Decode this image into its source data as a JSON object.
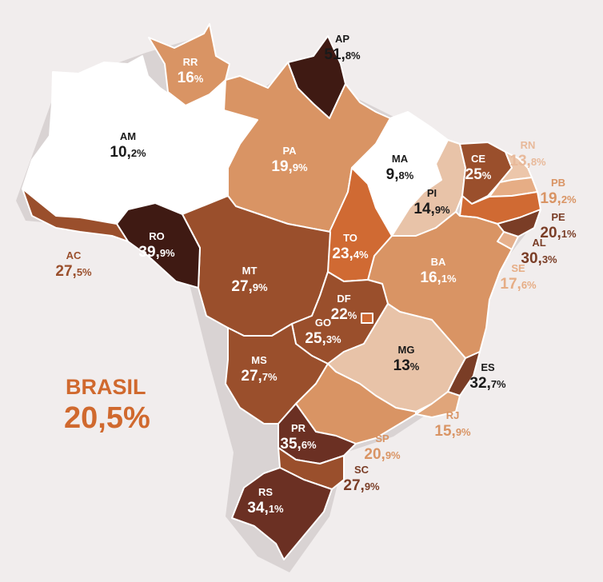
{
  "colors": {
    "background": "#f1eded",
    "border": "#ffffff",
    "text_dark": "#1a1a1a",
    "text_light": "#ffffff",
    "brasil_orange": "#d0692e",
    "scale": [
      "#ffffff",
      "#e8c3a8",
      "#d99464",
      "#d06a33",
      "#9a4f2c",
      "#7a3d26",
      "#6b3023",
      "#3f1a13"
    ]
  },
  "brasil": {
    "label": "BRASIL",
    "value_int": "20,",
    "value_dec": "5%",
    "color": "#d0692e"
  },
  "states": [
    {
      "abbr": "RR",
      "int": "16",
      "dec": "%",
      "color": "#d99464",
      "text": "#ffffff"
    },
    {
      "abbr": "AP",
      "int": "51,",
      "dec": "8%",
      "color": "#3f1a13",
      "text": "#1a1a1a"
    },
    {
      "abbr": "AM",
      "int": "10,",
      "dec": "2%",
      "color": "#ffffff",
      "text": "#1a1a1a"
    },
    {
      "abbr": "PA",
      "int": "19,",
      "dec": "9%",
      "color": "#d99464",
      "text": "#ffffff"
    },
    {
      "abbr": "MA",
      "int": "9,",
      "dec": "8%",
      "color": "#ffffff",
      "text": "#1a1a1a"
    },
    {
      "abbr": "CE",
      "int": "25",
      "dec": "%",
      "color": "#9a4f2c",
      "text": "#ffffff"
    },
    {
      "abbr": "RN",
      "int": "13,",
      "dec": "8%",
      "color": "#ecc6aa",
      "text": "#e8b99a"
    },
    {
      "abbr": "PB",
      "int": "19,",
      "dec": "2%",
      "color": "#e6ad85",
      "text": "#d99464"
    },
    {
      "abbr": "PE",
      "int": "20,",
      "dec": "1%",
      "color": "#d06a33",
      "text": "#7a3d26"
    },
    {
      "abbr": "AL",
      "int": "30,",
      "dec": "3%",
      "color": "#7a3d26",
      "text": "#7a3d26"
    },
    {
      "abbr": "SE",
      "int": "17,",
      "dec": "6%",
      "color": "#e6b08c",
      "text": "#e6ad85"
    },
    {
      "abbr": "PI",
      "int": "14,",
      "dec": "9%",
      "color": "#e8c3a8",
      "text": "#1a1a1a"
    },
    {
      "abbr": "AC",
      "int": "27,",
      "dec": "5%",
      "color": "#9a4f2c",
      "text": "#9a4f2c"
    },
    {
      "abbr": "RO",
      "int": "39,",
      "dec": "9%",
      "color": "#3f1a13",
      "text": "#ffffff"
    },
    {
      "abbr": "MT",
      "int": "27,",
      "dec": "9%",
      "color": "#9a4f2c",
      "text": "#ffffff"
    },
    {
      "abbr": "TO",
      "int": "23,",
      "dec": "4%",
      "color": "#d06a33",
      "text": "#ffffff"
    },
    {
      "abbr": "BA",
      "int": "16,",
      "dec": "1%",
      "color": "#d99464",
      "text": "#ffffff"
    },
    {
      "abbr": "DF",
      "int": "22",
      "dec": "%",
      "color": "#d06a33",
      "text": "#ffffff"
    },
    {
      "abbr": "GO",
      "int": "25,",
      "dec": "3%",
      "color": "#9a4f2c",
      "text": "#ffffff"
    },
    {
      "abbr": "MG",
      "int": "13",
      "dec": "%",
      "color": "#e8c3a8",
      "text": "#1a1a1a"
    },
    {
      "abbr": "ES",
      "int": "32,",
      "dec": "7%",
      "color": "#7a3d26",
      "text": "#1a1a1a"
    },
    {
      "abbr": "MS",
      "int": "27,",
      "dec": "7%",
      "color": "#9a4f2c",
      "text": "#ffffff"
    },
    {
      "abbr": "RJ",
      "int": "15,",
      "dec": "9%",
      "color": "#e0a57a",
      "text": "#d99464"
    },
    {
      "abbr": "SP",
      "int": "20,",
      "dec": "9%",
      "color": "#d99464",
      "text": "#d99464"
    },
    {
      "abbr": "PR",
      "int": "35,",
      "dec": "6%",
      "color": "#6b3023",
      "text": "#ffffff"
    },
    {
      "abbr": "SC",
      "int": "27,",
      "dec": "9%",
      "color": "#9a4f2c",
      "text": "#7a3d26"
    },
    {
      "abbr": "RS",
      "int": "34,",
      "dec": "1%",
      "color": "#6b3023",
      "text": "#ffffff"
    }
  ]
}
